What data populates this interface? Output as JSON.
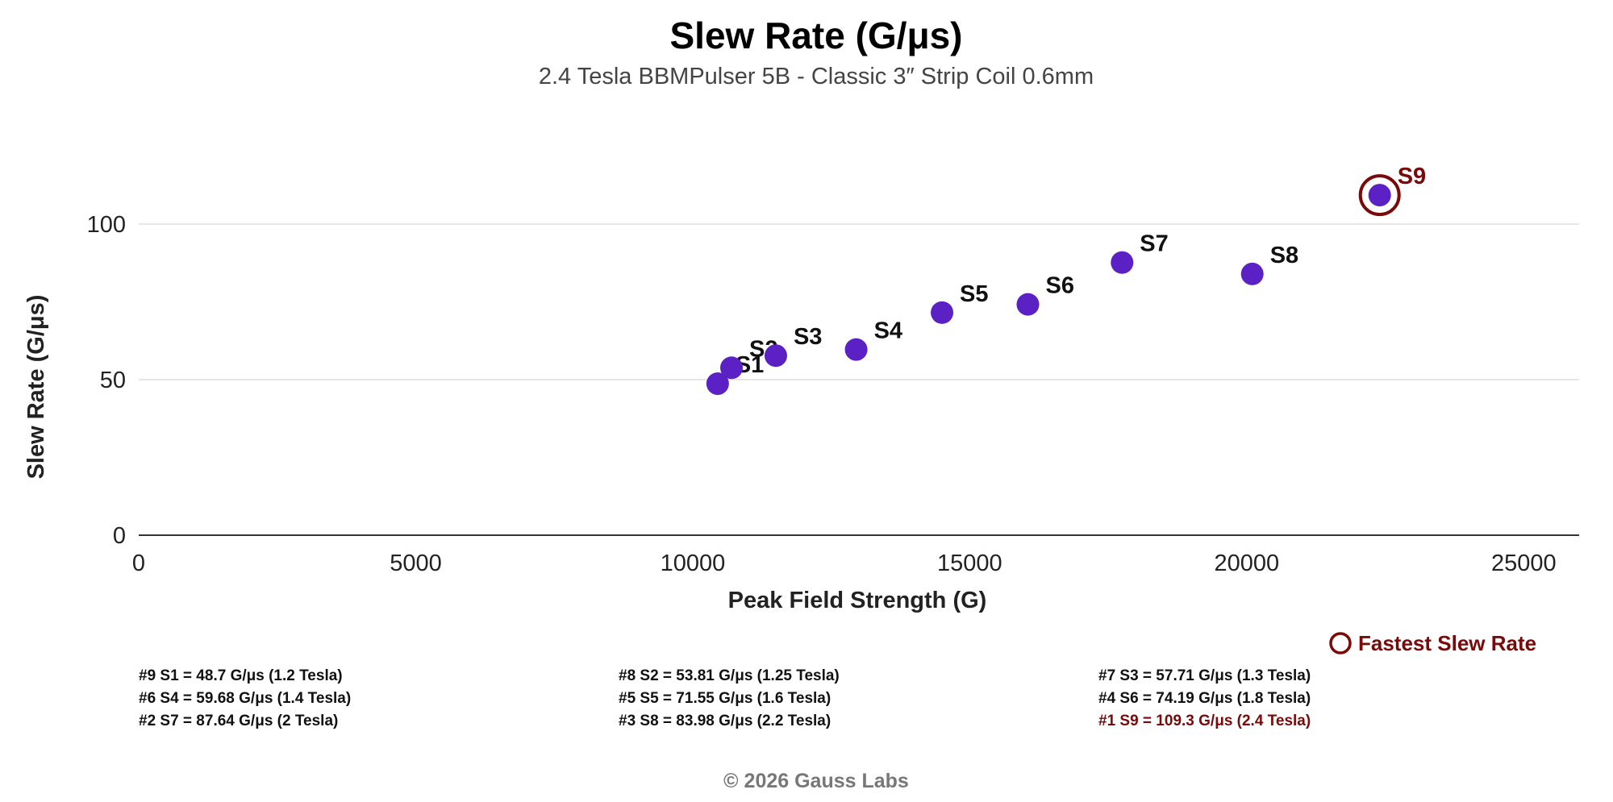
{
  "chart_data": {
    "type": "scatter",
    "title": "Slew Rate (G/μs)",
    "subtitle": "2.4 Tesla BBMPulser 5B - Classic 3″ Strip Coil 0.6mm",
    "xlabel": "Peak Field Strength (G)",
    "ylabel": "Slew Rate (G/μs)",
    "xlim": [
      0,
      26000
    ],
    "ylim": [
      0,
      120
    ],
    "xticks": [
      "0",
      "5000",
      "10000",
      "15000",
      "20000",
      "25000"
    ],
    "yticks": [
      "0",
      "50",
      "100"
    ],
    "grid": "horizontal",
    "point_color": "#5b21c4",
    "highlight_color": "#7a0a0a",
    "points": [
      {
        "label": "S1",
        "x": 10450,
        "y": 48.7
      },
      {
        "label": "S2",
        "x": 10700,
        "y": 53.81
      },
      {
        "label": "S3",
        "x": 11500,
        "y": 57.71
      },
      {
        "label": "S4",
        "x": 12950,
        "y": 59.68
      },
      {
        "label": "S5",
        "x": 14500,
        "y": 71.55
      },
      {
        "label": "S6",
        "x": 16050,
        "y": 74.19
      },
      {
        "label": "S7",
        "x": 17750,
        "y": 87.64
      },
      {
        "label": "S8",
        "x": 20100,
        "y": 83.98
      },
      {
        "label": "S9",
        "x": 22400,
        "y": 109.3,
        "highlight": true
      }
    ],
    "legend": {
      "label": "Fastest Slew Rate",
      "position": "bottom-right"
    },
    "summary": [
      [
        "#9 S1 = 48.7 G/μs (1.2 Tesla)",
        "#8 S2 = 53.81 G/μs (1.25 Tesla)",
        "#7 S3 = 57.71 G/μs (1.3 Tesla)"
      ],
      [
        "#6 S4 = 59.68 G/μs (1.4 Tesla)",
        "#5 S5 = 71.55 G/μs (1.6 Tesla)",
        "#4 S6 = 74.19 G/μs (1.8 Tesla)"
      ],
      [
        "#2 S7 = 87.64 G/μs (2 Tesla)",
        "#3 S8 = 83.98 G/μs (2.2 Tesla)",
        "#1 S9 = 109.3 G/μs (2.4 Tesla)"
      ]
    ],
    "summary_highlight": [
      2,
      2
    ]
  },
  "footer": "© 2026 Gauss Labs"
}
